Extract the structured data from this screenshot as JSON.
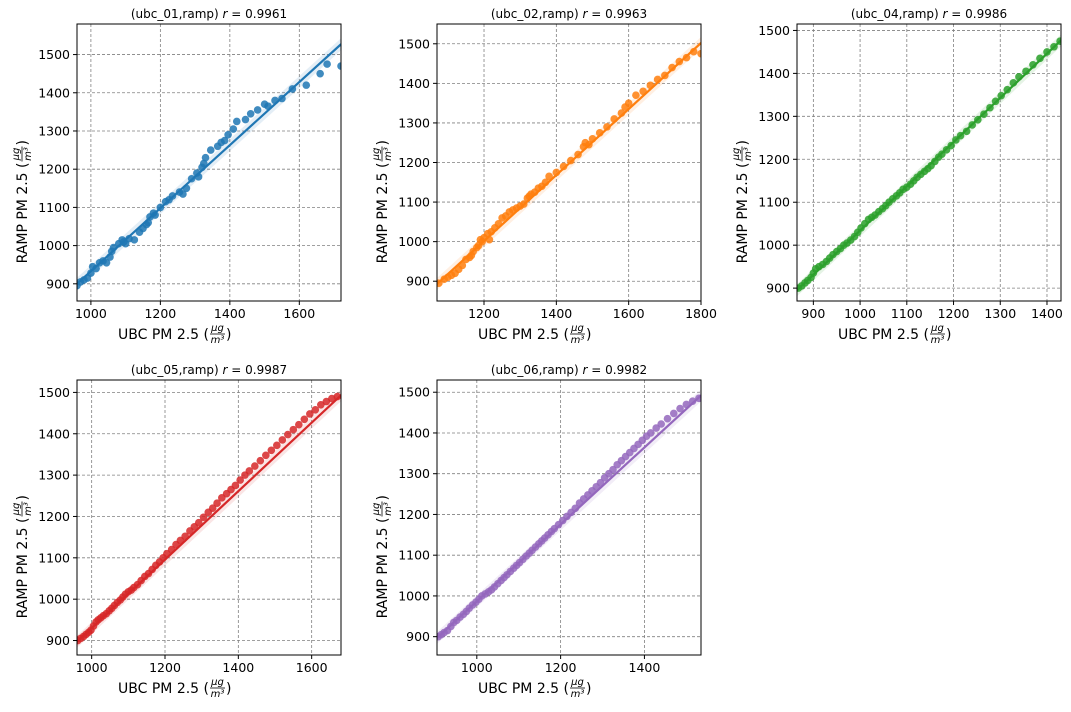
{
  "figure": {
    "xlabel": "UBC PM 2.5",
    "ylabel": "RAMP PM 2.5",
    "unit_num": "μg",
    "unit_den": "m³"
  },
  "chart_data": [
    {
      "type": "scatter",
      "title": "(ubc_01,ramp)",
      "r_label": "r",
      "r_value": "= 0.9961",
      "color": "#1f77b4",
      "xlim": [
        960,
        1720
      ],
      "ylim": [
        855,
        1580
      ],
      "xticks": [
        1000,
        1200,
        1400,
        1600
      ],
      "yticks": [
        900,
        1000,
        1100,
        1200,
        1300,
        1400,
        1500
      ],
      "fit": [
        [
          960,
          900
        ],
        [
          1720,
          1527
        ]
      ],
      "points": [
        [
          960,
          895
        ],
        [
          970,
          905
        ],
        [
          980,
          910
        ],
        [
          990,
          915
        ],
        [
          1000,
          928
        ],
        [
          1005,
          945
        ],
        [
          1015,
          940
        ],
        [
          1025,
          955
        ],
        [
          1035,
          960
        ],
        [
          1045,
          955
        ],
        [
          1055,
          970
        ],
        [
          1060,
          985
        ],
        [
          1065,
          995
        ],
        [
          1080,
          1005
        ],
        [
          1090,
          1015
        ],
        [
          1095,
          1010
        ],
        [
          1100,
          1005
        ],
        [
          1110,
          1018
        ],
        [
          1125,
          1015
        ],
        [
          1140,
          1035
        ],
        [
          1150,
          1045
        ],
        [
          1160,
          1055
        ],
        [
          1165,
          1060
        ],
        [
          1170,
          1075
        ],
        [
          1180,
          1085
        ],
        [
          1185,
          1080
        ],
        [
          1200,
          1100
        ],
        [
          1215,
          1115
        ],
        [
          1225,
          1120
        ],
        [
          1235,
          1130
        ],
        [
          1255,
          1140
        ],
        [
          1265,
          1135
        ],
        [
          1275,
          1150
        ],
        [
          1290,
          1175
        ],
        [
          1305,
          1190
        ],
        [
          1310,
          1180
        ],
        [
          1320,
          1205
        ],
        [
          1325,
          1215
        ],
        [
          1330,
          1230
        ],
        [
          1345,
          1250
        ],
        [
          1365,
          1260
        ],
        [
          1375,
          1270
        ],
        [
          1385,
          1275
        ],
        [
          1395,
          1290
        ],
        [
          1410,
          1305
        ],
        [
          1420,
          1325
        ],
        [
          1445,
          1330
        ],
        [
          1460,
          1345
        ],
        [
          1480,
          1355
        ],
        [
          1500,
          1370
        ],
        [
          1510,
          1365
        ],
        [
          1530,
          1380
        ],
        [
          1550,
          1385
        ],
        [
          1580,
          1410
        ],
        [
          1620,
          1420
        ],
        [
          1660,
          1450
        ],
        [
          1680,
          1475
        ],
        [
          1720,
          1470
        ]
      ]
    },
    {
      "type": "scatter",
      "title": "(ubc_02,ramp)",
      "r_label": "r",
      "r_value": "= 0.9963",
      "color": "#ff7f0e",
      "xlim": [
        1070,
        1800
      ],
      "ylim": [
        850,
        1550
      ],
      "xticks": [
        1200,
        1400,
        1600,
        1800
      ],
      "yticks": [
        900,
        1000,
        1100,
        1200,
        1300,
        1400,
        1500
      ],
      "fit": [
        [
          1070,
          893
        ],
        [
          1800,
          1502
        ]
      ],
      "points": [
        [
          1075,
          895
        ],
        [
          1090,
          905
        ],
        [
          1100,
          910
        ],
        [
          1110,
          915
        ],
        [
          1120,
          920
        ],
        [
          1130,
          930
        ],
        [
          1140,
          940
        ],
        [
          1150,
          955
        ],
        [
          1160,
          960
        ],
        [
          1165,
          965
        ],
        [
          1170,
          975
        ],
        [
          1180,
          985
        ],
        [
          1185,
          990
        ],
        [
          1190,
          1005
        ],
        [
          1195,
          1000
        ],
        [
          1200,
          1010
        ],
        [
          1210,
          1020
        ],
        [
          1215,
          1005
        ],
        [
          1220,
          1025
        ],
        [
          1230,
          1035
        ],
        [
          1240,
          1045
        ],
        [
          1250,
          1060
        ],
        [
          1260,
          1065
        ],
        [
          1270,
          1075
        ],
        [
          1280,
          1080
        ],
        [
          1290,
          1085
        ],
        [
          1300,
          1090
        ],
        [
          1310,
          1095
        ],
        [
          1320,
          1110
        ],
        [
          1325,
          1115
        ],
        [
          1330,
          1120
        ],
        [
          1340,
          1125
        ],
        [
          1350,
          1135
        ],
        [
          1360,
          1140
        ],
        [
          1370,
          1150
        ],
        [
          1380,
          1165
        ],
        [
          1400,
          1175
        ],
        [
          1420,
          1190
        ],
        [
          1440,
          1205
        ],
        [
          1460,
          1220
        ],
        [
          1475,
          1240
        ],
        [
          1480,
          1250
        ],
        [
          1490,
          1245
        ],
        [
          1500,
          1260
        ],
        [
          1520,
          1275
        ],
        [
          1540,
          1290
        ],
        [
          1560,
          1310
        ],
        [
          1580,
          1325
        ],
        [
          1590,
          1340
        ],
        [
          1600,
          1350
        ],
        [
          1620,
          1370
        ],
        [
          1640,
          1380
        ],
        [
          1660,
          1395
        ],
        [
          1680,
          1410
        ],
        [
          1700,
          1420
        ],
        [
          1720,
          1440
        ],
        [
          1740,
          1455
        ],
        [
          1760,
          1465
        ],
        [
          1780,
          1480
        ],
        [
          1800,
          1475
        ]
      ]
    },
    {
      "type": "scatter",
      "title": "(ubc_04,ramp)",
      "r_label": "r",
      "r_value": "= 0.9986",
      "color": "#2ca02c",
      "xlim": [
        865,
        1430
      ],
      "ylim": [
        870,
        1515
      ],
      "xticks": [
        900,
        1000,
        1100,
        1200,
        1300,
        1400
      ],
      "yticks": [
        900,
        1000,
        1100,
        1200,
        1300,
        1400,
        1500
      ],
      "fit": [
        [
          865,
          895
        ],
        [
          1430,
          1477
        ]
      ],
      "points": [
        [
          868,
          900
        ],
        [
          875,
          905
        ],
        [
          882,
          912
        ],
        [
          888,
          918
        ],
        [
          895,
          925
        ],
        [
          900,
          935
        ],
        [
          905,
          945
        ],
        [
          912,
          950
        ],
        [
          920,
          955
        ],
        [
          928,
          962
        ],
        [
          935,
          970
        ],
        [
          942,
          978
        ],
        [
          950,
          985
        ],
        [
          958,
          992
        ],
        [
          965,
          1000
        ],
        [
          972,
          1005
        ],
        [
          980,
          1012
        ],
        [
          988,
          1020
        ],
        [
          995,
          1030
        ],
        [
          1002,
          1040
        ],
        [
          1010,
          1050
        ],
        [
          1018,
          1060
        ],
        [
          1025,
          1065
        ],
        [
          1032,
          1070
        ],
        [
          1040,
          1078
        ],
        [
          1048,
          1085
        ],
        [
          1055,
          1092
        ],
        [
          1062,
          1100
        ],
        [
          1070,
          1108
        ],
        [
          1078,
          1115
        ],
        [
          1085,
          1122
        ],
        [
          1092,
          1130
        ],
        [
          1100,
          1135
        ],
        [
          1108,
          1142
        ],
        [
          1115,
          1150
        ],
        [
          1122,
          1158
        ],
        [
          1130,
          1165
        ],
        [
          1138,
          1172
        ],
        [
          1145,
          1178
        ],
        [
          1152,
          1185
        ],
        [
          1160,
          1195
        ],
        [
          1168,
          1205
        ],
        [
          1175,
          1212
        ],
        [
          1185,
          1222
        ],
        [
          1195,
          1232
        ],
        [
          1205,
          1245
        ],
        [
          1215,
          1255
        ],
        [
          1228,
          1265
        ],
        [
          1240,
          1280
        ],
        [
          1252,
          1292
        ],
        [
          1265,
          1305
        ],
        [
          1278,
          1320
        ],
        [
          1290,
          1335
        ],
        [
          1302,
          1348
        ],
        [
          1315,
          1362
        ],
        [
          1328,
          1378
        ],
        [
          1340,
          1392
        ],
        [
          1355,
          1405
        ],
        [
          1370,
          1420
        ],
        [
          1385,
          1435
        ],
        [
          1400,
          1450
        ],
        [
          1415,
          1462
        ],
        [
          1428,
          1475
        ]
      ]
    },
    {
      "type": "scatter",
      "title": "(ubc_05,ramp)",
      "r_label": "r",
      "r_value": "= 0.9987",
      "color": "#d62728",
      "xlim": [
        960,
        1680
      ],
      "ylim": [
        865,
        1530
      ],
      "xticks": [
        1000,
        1200,
        1400,
        1600
      ],
      "yticks": [
        900,
        1000,
        1100,
        1200,
        1300,
        1400,
        1500
      ],
      "fit": [
        [
          960,
          897
        ],
        [
          1680,
          1493
        ]
      ],
      "points": [
        [
          962,
          900
        ],
        [
          970,
          905
        ],
        [
          978,
          910
        ],
        [
          985,
          915
        ],
        [
          992,
          920
        ],
        [
          998,
          925
        ],
        [
          1005,
          935
        ],
        [
          1012,
          945
        ],
        [
          1018,
          950
        ],
        [
          1025,
          955
        ],
        [
          1032,
          960
        ],
        [
          1040,
          965
        ],
        [
          1048,
          972
        ],
        [
          1055,
          978
        ],
        [
          1062,
          985
        ],
        [
          1070,
          992
        ],
        [
          1078,
          998
        ],
        [
          1085,
          1005
        ],
        [
          1092,
          1012
        ],
        [
          1100,
          1018
        ],
        [
          1108,
          1022
        ],
        [
          1115,
          1028
        ],
        [
          1125,
          1035
        ],
        [
          1135,
          1045
        ],
        [
          1145,
          1055
        ],
        [
          1155,
          1062
        ],
        [
          1165,
          1072
        ],
        [
          1175,
          1082
        ],
        [
          1185,
          1090
        ],
        [
          1195,
          1100
        ],
        [
          1205,
          1110
        ],
        [
          1218,
          1120
        ],
        [
          1230,
          1132
        ],
        [
          1242,
          1142
        ],
        [
          1255,
          1152
        ],
        [
          1268,
          1165
        ],
        [
          1280,
          1175
        ],
        [
          1292,
          1185
        ],
        [
          1305,
          1198
        ],
        [
          1318,
          1210
        ],
        [
          1330,
          1220
        ],
        [
          1342,
          1232
        ],
        [
          1355,
          1245
        ],
        [
          1368,
          1255
        ],
        [
          1380,
          1265
        ],
        [
          1392,
          1275
        ],
        [
          1405,
          1288
        ],
        [
          1418,
          1300
        ],
        [
          1430,
          1310
        ],
        [
          1445,
          1322
        ],
        [
          1460,
          1335
        ],
        [
          1475,
          1348
        ],
        [
          1490,
          1360
        ],
        [
          1505,
          1372
        ],
        [
          1520,
          1385
        ],
        [
          1535,
          1398
        ],
        [
          1550,
          1410
        ],
        [
          1565,
          1422
        ],
        [
          1580,
          1435
        ],
        [
          1595,
          1448
        ],
        [
          1610,
          1458
        ],
        [
          1625,
          1470
        ],
        [
          1640,
          1478
        ],
        [
          1655,
          1485
        ],
        [
          1670,
          1490
        ]
      ]
    },
    {
      "type": "scatter",
      "title": "(ubc_06,ramp)",
      "r_label": "r",
      "r_value": "= 0.9982",
      "color": "#9467bd",
      "xlim": [
        905,
        1535
      ],
      "ylim": [
        855,
        1530
      ],
      "xticks": [
        1000,
        1200,
        1400
      ],
      "yticks": [
        900,
        1000,
        1100,
        1200,
        1300,
        1400,
        1500
      ],
      "fit": [
        [
          905,
          897
        ],
        [
          1535,
          1492
        ]
      ],
      "points": [
        [
          908,
          900
        ],
        [
          915,
          905
        ],
        [
          922,
          910
        ],
        [
          930,
          915
        ],
        [
          938,
          925
        ],
        [
          945,
          935
        ],
        [
          952,
          940
        ],
        [
          960,
          948
        ],
        [
          968,
          955
        ],
        [
          975,
          962
        ],
        [
          982,
          970
        ],
        [
          990,
          978
        ],
        [
          998,
          985
        ],
        [
          1005,
          992
        ],
        [
          1012,
          1000
        ],
        [
          1020,
          1005
        ],
        [
          1028,
          1010
        ],
        [
          1035,
          1015
        ],
        [
          1042,
          1022
        ],
        [
          1050,
          1030
        ],
        [
          1058,
          1038
        ],
        [
          1065,
          1045
        ],
        [
          1072,
          1052
        ],
        [
          1080,
          1060
        ],
        [
          1088,
          1068
        ],
        [
          1095,
          1075
        ],
        [
          1102,
          1082
        ],
        [
          1110,
          1090
        ],
        [
          1118,
          1098
        ],
        [
          1125,
          1105
        ],
        [
          1132,
          1112
        ],
        [
          1140,
          1120
        ],
        [
          1148,
          1128
        ],
        [
          1155,
          1135
        ],
        [
          1162,
          1142
        ],
        [
          1170,
          1150
        ],
        [
          1178,
          1158
        ],
        [
          1185,
          1165
        ],
        [
          1195,
          1175
        ],
        [
          1205,
          1185
        ],
        [
          1215,
          1195
        ],
        [
          1225,
          1205
        ],
        [
          1235,
          1215
        ],
        [
          1245,
          1228
        ],
        [
          1255,
          1238
        ],
        [
          1265,
          1248
        ],
        [
          1275,
          1258
        ],
        [
          1285,
          1268
        ],
        [
          1295,
          1278
        ],
        [
          1305,
          1290
        ],
        [
          1315,
          1300
        ],
        [
          1325,
          1310
        ],
        [
          1335,
          1322
        ],
        [
          1345,
          1332
        ],
        [
          1355,
          1342
        ],
        [
          1365,
          1352
        ],
        [
          1375,
          1362
        ],
        [
          1385,
          1372
        ],
        [
          1395,
          1382
        ],
        [
          1405,
          1392
        ],
        [
          1415,
          1400
        ],
        [
          1428,
          1412
        ],
        [
          1440,
          1422
        ],
        [
          1455,
          1435
        ],
        [
          1470,
          1448
        ],
        [
          1485,
          1460
        ],
        [
          1500,
          1470
        ],
        [
          1515,
          1478
        ],
        [
          1530,
          1485
        ]
      ]
    }
  ]
}
